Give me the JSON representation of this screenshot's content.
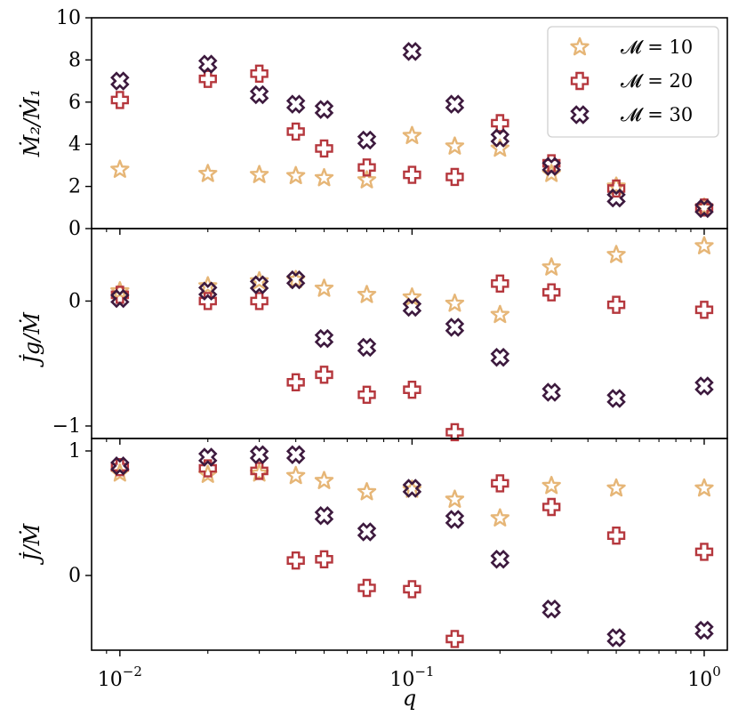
{
  "chart_data": {
    "type": "scatter",
    "x_scale": "log",
    "x": [
      0.01,
      0.02,
      0.03,
      0.04,
      0.05,
      0.07,
      0.1,
      0.14,
      0.2,
      0.3,
      0.5,
      1.0
    ],
    "xlabel": "q",
    "xlim": [
      0.008,
      1.2
    ],
    "x_ticks": [
      {
        "value": 0.01,
        "base": "10",
        "exp": "−2"
      },
      {
        "value": 0.1,
        "base": "10",
        "exp": "−1"
      },
      {
        "value": 1,
        "base": "10",
        "exp": "0"
      }
    ],
    "series_styles": [
      {
        "name": "𝓜 = 10",
        "marker": "star",
        "color": "#e6b677"
      },
      {
        "name": "𝓜 = 20",
        "marker": "plus",
        "color": "#b5373d"
      },
      {
        "name": "𝓜 = 30",
        "marker": "x",
        "color": "#3d1a3e"
      }
    ],
    "legend": {
      "placement": "top-right",
      "entries": [
        "𝓜 = 10",
        "𝓜 = 20",
        "𝓜 = 30"
      ]
    },
    "panels": [
      {
        "ylabel": "Ṁ₂/Ṁ₁",
        "ylim": [
          0,
          10
        ],
        "y_ticks": [
          0,
          2,
          4,
          6,
          8,
          10
        ],
        "y_tick_labels": [
          "0",
          "2",
          "4",
          "6",
          "8",
          "10"
        ],
        "series": [
          {
            "name": "𝓜 = 10",
            "values": [
              2.8,
              2.6,
              2.55,
              2.5,
              2.4,
              2.3,
              4.4,
              3.9,
              3.8,
              2.6,
              2.0,
              1.0
            ]
          },
          {
            "name": "𝓜 = 20",
            "values": [
              6.1,
              7.1,
              7.35,
              4.6,
              3.8,
              2.9,
              2.55,
              2.45,
              5.0,
              3.1,
              1.9,
              1.0
            ]
          },
          {
            "name": "𝓜 = 30",
            "values": [
              7.0,
              7.8,
              6.35,
              5.9,
              5.65,
              4.2,
              8.4,
              5.9,
              4.3,
              2.95,
              1.45,
              0.95
            ]
          }
        ]
      },
      {
        "ylabel": "J̇g/Ṁ",
        "ylim": [
          -1.1,
          0.58
        ],
        "y_ticks": [
          -1,
          0
        ],
        "y_tick_labels": [
          "−1",
          "0"
        ],
        "series": [
          {
            "name": "𝓜 = 10",
            "values": [
              0.08,
              0.12,
              0.16,
              0.17,
              0.1,
              0.05,
              0.03,
              -0.02,
              -0.11,
              0.27,
              0.37,
              0.44
            ]
          },
          {
            "name": "𝓜 = 20",
            "values": [
              0.05,
              0.0,
              0.0,
              -0.65,
              -0.59,
              -0.75,
              -0.71,
              -1.05,
              0.14,
              0.07,
              -0.03,
              -0.07
            ]
          },
          {
            "name": "𝓜 = 30",
            "values": [
              0.02,
              0.08,
              0.13,
              0.17,
              -0.3,
              -0.37,
              -0.05,
              -0.21,
              -0.45,
              -0.73,
              -0.78,
              -0.68
            ]
          }
        ]
      },
      {
        "ylabel": "J̇/Ṁ",
        "ylim": [
          -0.6,
          1.1
        ],
        "y_ticks": [
          0,
          1
        ],
        "y_tick_labels": [
          "0",
          "1"
        ],
        "series": [
          {
            "name": "𝓜 = 10",
            "values": [
              0.82,
              0.81,
              0.82,
              0.8,
              0.76,
              0.67,
              0.69,
              0.61,
              0.46,
              0.72,
              0.7,
              0.7
            ]
          },
          {
            "name": "𝓜 = 20",
            "values": [
              0.87,
              0.86,
              0.84,
              0.12,
              0.13,
              -0.1,
              -0.11,
              -0.51,
              0.74,
              0.55,
              0.32,
              0.19
            ]
          },
          {
            "name": "𝓜 = 30",
            "values": [
              0.88,
              0.95,
              0.97,
              0.97,
              0.48,
              0.35,
              0.7,
              0.45,
              0.13,
              -0.27,
              -0.5,
              -0.44
            ]
          }
        ]
      }
    ]
  }
}
